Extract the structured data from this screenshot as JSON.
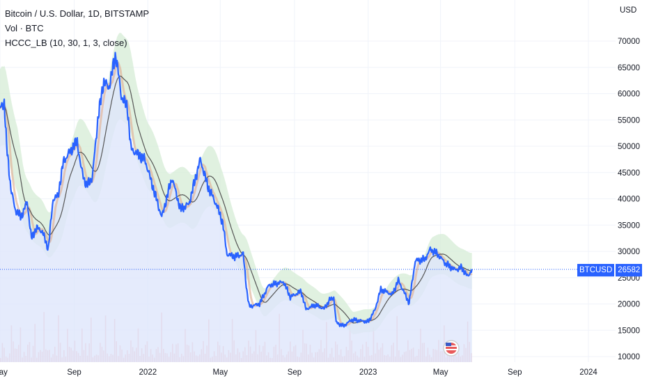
{
  "legend": {
    "title": "Bitcoin / U.S. Dollar, 1D, BITSTAMP",
    "vol": "Vol · BTC",
    "indicator": "HCCC_LB (10, 30, 1, 3, close)"
  },
  "currency": "USD",
  "last_price": {
    "symbol": "BTCUSD",
    "value": "26582"
  },
  "colors": {
    "price": "#2962ff",
    "sma_slow": "#555555",
    "sma_fast": "#e0b8a0",
    "band_fill": "#d6ecd6",
    "area_fill": "#dfe6fb",
    "volume": "#f2a7a7",
    "price_line": "#2962ff"
  },
  "chart_data": {
    "type": "line",
    "title": "Bitcoin / U.S. Dollar, 1D, BITSTAMP",
    "ylabel": "USD",
    "ylim": [
      10000,
      75000
    ],
    "xlim": [
      "2021-05-01",
      "2024-02-15"
    ],
    "y_ticks": [
      10000,
      15000,
      20000,
      25000,
      30000,
      35000,
      40000,
      45000,
      50000,
      55000,
      60000,
      65000,
      70000
    ],
    "y_tick_labels": [
      "10000",
      "15000",
      "20000",
      "25000",
      "30000",
      "35000",
      "40000",
      "45000",
      "50000",
      "55000",
      "60000",
      "65000",
      "70000"
    ],
    "x_ticks": [
      "2021-05-01",
      "2021-09-01",
      "2022-01-01",
      "2022-05-01",
      "2022-09-01",
      "2023-01-01",
      "2023-05-01",
      "2023-09-01",
      "2024-01-01"
    ],
    "x_tick_labels": [
      "May",
      "Sep",
      "2022",
      "May",
      "Sep",
      "2023",
      "May",
      "Sep",
      "2024"
    ],
    "series": [
      {
        "name": "BTCUSD",
        "x": [
          "2021-05-01",
          "2021-05-08",
          "2021-05-12",
          "2021-05-19",
          "2021-05-26",
          "2021-06-05",
          "2021-06-15",
          "2021-06-22",
          "2021-07-01",
          "2021-07-10",
          "2021-07-20",
          "2021-07-28",
          "2021-08-05",
          "2021-08-14",
          "2021-08-22",
          "2021-09-06",
          "2021-09-12",
          "2021-09-21",
          "2021-10-01",
          "2021-10-10",
          "2021-10-20",
          "2021-10-28",
          "2021-11-09",
          "2021-11-18",
          "2021-11-28",
          "2021-12-04",
          "2021-12-15",
          "2021-12-27",
          "2022-01-10",
          "2022-01-24",
          "2022-02-10",
          "2022-02-24",
          "2022-03-10",
          "2022-03-29",
          "2022-04-10",
          "2022-04-26",
          "2022-05-05",
          "2022-05-12",
          "2022-05-25",
          "2022-06-08",
          "2022-06-14",
          "2022-06-18",
          "2022-07-05",
          "2022-07-20",
          "2022-07-30",
          "2022-08-14",
          "2022-08-25",
          "2022-09-12",
          "2022-09-20",
          "2022-10-05",
          "2022-10-20",
          "2022-10-29",
          "2022-11-05",
          "2022-11-09",
          "2022-11-21",
          "2022-12-05",
          "2022-12-20",
          "2023-01-01",
          "2023-01-12",
          "2023-01-22",
          "2023-02-10",
          "2023-02-20",
          "2023-03-10",
          "2023-03-20",
          "2023-04-05",
          "2023-04-14",
          "2023-04-26",
          "2023-05-10",
          "2023-05-25",
          "2023-06-05",
          "2023-06-15",
          "2023-06-22"
        ],
        "values": [
          57000,
          58500,
          50000,
          42000,
          38000,
          36500,
          39500,
          32500,
          34500,
          33800,
          30500,
          40000,
          40500,
          47000,
          48500,
          51000,
          46000,
          42500,
          44000,
          55000,
          62500,
          61000,
          67500,
          59500,
          57500,
          49500,
          48500,
          47500,
          42000,
          36500,
          44000,
          38000,
          39000,
          47500,
          42500,
          38500,
          35500,
          29500,
          29000,
          29500,
          22500,
          19500,
          20000,
          23500,
          23800,
          24200,
          21300,
          22400,
          19000,
          19800,
          19100,
          20700,
          21300,
          16500,
          15800,
          17000,
          16800,
          16600,
          18800,
          22800,
          21800,
          24500,
          20200,
          28200,
          28500,
          30400,
          29500,
          27600,
          26500,
          26900,
          25200,
          26582
        ]
      },
      {
        "name": "Vol · BTC",
        "type": "volume"
      }
    ],
    "last_value": 26582
  }
}
